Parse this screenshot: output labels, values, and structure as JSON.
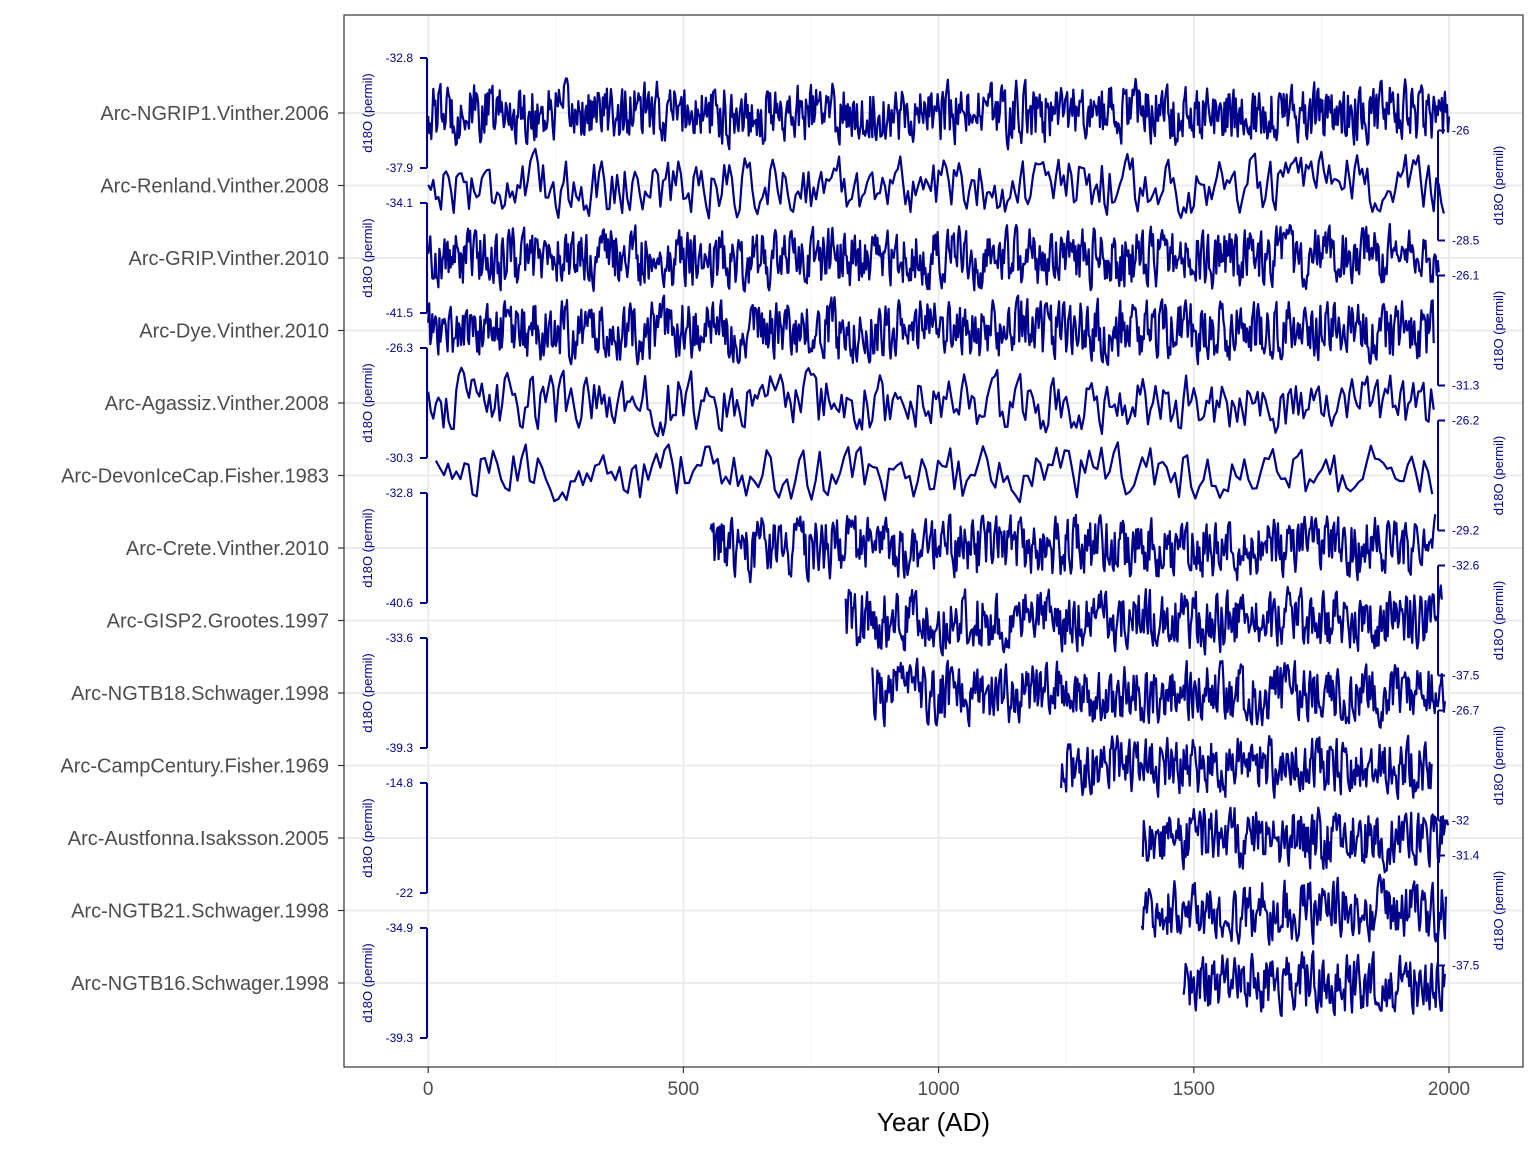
{
  "chart_data": {
    "type": "line",
    "title": "",
    "xlabel": "Year (AD)",
    "ylabel": "",
    "xlim": [
      -165,
      2145
    ],
    "x_ticks": [
      0,
      500,
      1000,
      1500,
      2000
    ],
    "grid": true,
    "line_color": "#00008b",
    "series": [
      {
        "name": "Arc-NGRIP1.Vinther.2006",
        "x_range": [
          0,
          2000
        ],
        "y_range": [
          -37.9,
          -32.8
        ],
        "resolution": 2,
        "axis_side": "left",
        "axis_top": "-32.8",
        "axis_bottom": "-37.9",
        "axis_label": "d18O (permil)"
      },
      {
        "name": "Arc-Renland.Vinther.2008",
        "x_range": [
          0,
          1990
        ],
        "y_range": [
          -28.5,
          -26
        ],
        "resolution": 5,
        "axis_side": "right",
        "axis_top": "-26",
        "axis_bottom": "-28.5",
        "axis_label": "d18O (permil)"
      },
      {
        "name": "Arc-GRIP.Vinther.2010",
        "x_range": [
          0,
          1980
        ],
        "y_range": [
          -41.5,
          -34.1
        ],
        "resolution": 2,
        "axis_side": "left",
        "axis_top": "-34.1",
        "axis_bottom": "-41.5",
        "axis_label": "d18O (permil)"
      },
      {
        "name": "Arc-Dye.Vinther.2010",
        "x_range": [
          0,
          1970
        ],
        "y_range": [
          -31.3,
          -26.1
        ],
        "resolution": 2,
        "axis_side": "right",
        "axis_top": "-26.1",
        "axis_bottom": "-31.3",
        "axis_label": "d18O (permil)"
      },
      {
        "name": "Arc-Agassiz.Vinther.2008",
        "x_range": [
          0,
          1970
        ],
        "y_range": [
          -30.3,
          -26.3
        ],
        "resolution": 5,
        "axis_side": "left",
        "axis_top": "-26.3",
        "axis_bottom": "-30.3",
        "axis_label": "d18O (permil)"
      },
      {
        "name": "Arc-DevonIceCap.Fisher.1983",
        "x_range": [
          15,
          1970
        ],
        "y_range": [
          -29.2,
          -26.2
        ],
        "resolution": 8,
        "axis_side": "right",
        "axis_top": "-26.2",
        "axis_bottom": "-29.2",
        "axis_label": "d18O (permil)"
      },
      {
        "name": "Arc-Crete.Vinther.2010",
        "x_range": [
          553,
          1974
        ],
        "y_range": [
          -40.6,
          -32.8
        ],
        "resolution": 2,
        "axis_side": "left",
        "axis_top": "-32.8",
        "axis_bottom": "-40.6",
        "axis_label": "d18O (permil)"
      },
      {
        "name": "Arc-GISP2.Grootes.1997",
        "x_range": [
          818,
          1987
        ],
        "y_range": [
          -37.5,
          -32.6
        ],
        "resolution": 2,
        "axis_side": "right",
        "axis_top": "-32.6",
        "axis_bottom": "-37.5",
        "axis_label": "d18O (permil)"
      },
      {
        "name": "Arc-NGTB18.Schwager.1998",
        "x_range": [
          870,
          1993
        ],
        "y_range": [
          -39.3,
          -33.6
        ],
        "resolution": 2,
        "axis_side": "left",
        "axis_top": "-33.6",
        "axis_bottom": "-39.3",
        "axis_label": "d18O (permil)"
      },
      {
        "name": "Arc-CampCentury.Fisher.1969",
        "x_range": [
          1240,
          1967
        ],
        "y_range": [
          -32,
          -26.7
        ],
        "resolution": 2,
        "axis_side": "right",
        "axis_top": "-26.7",
        "axis_bottom": "-32",
        "axis_label": "d18O (permil)"
      },
      {
        "name": "Arc-Austfonna.Isaksson.2005",
        "x_range": [
          1400,
          1998
        ],
        "y_range": [
          -22,
          -14.8
        ],
        "resolution": 2,
        "axis_side": "left",
        "axis_top": "-14.8",
        "axis_bottom": "-22",
        "axis_label": "d18O (permil)"
      },
      {
        "name": "Arc-NGTB21.Schwager.1998",
        "x_range": [
          1398,
          1994
        ],
        "y_range": [
          -37.5,
          -31.4
        ],
        "resolution": 2,
        "axis_side": "right",
        "axis_top": "-31.4",
        "axis_bottom": "-37.5",
        "axis_label": "d18O (permil)"
      },
      {
        "name": "Arc-NGTB16.Schwager.1998",
        "x_range": [
          1480,
          1993
        ],
        "y_range": [
          -39.3,
          -34.9
        ],
        "resolution": 2,
        "axis_side": "left",
        "axis_top": "-34.9",
        "axis_bottom": "-39.3",
        "axis_label": "d18O (permil)"
      }
    ]
  }
}
